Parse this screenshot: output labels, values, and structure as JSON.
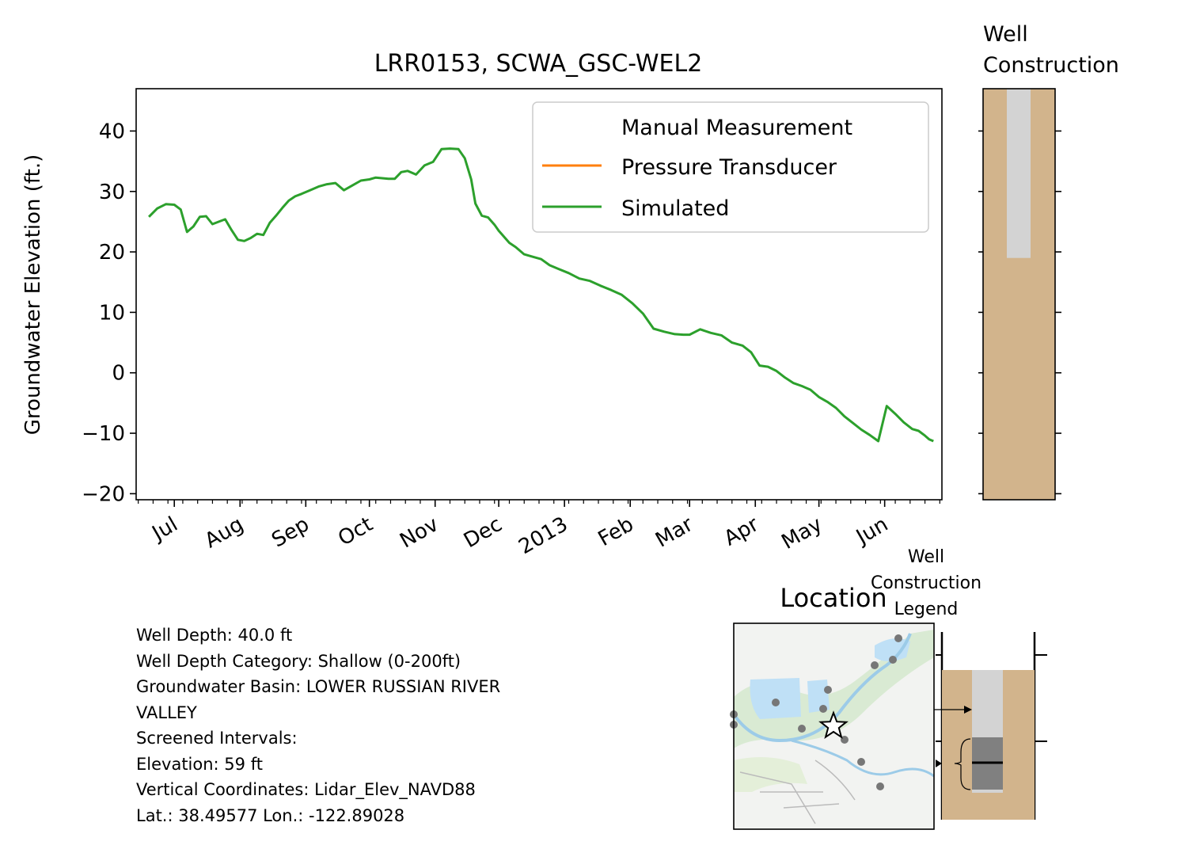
{
  "chart_data": {
    "type": "line",
    "title": "LRR0153, SCWA_GSC-WEL2",
    "ylabel": "Groundwater Elevation (ft.)",
    "xlabel": "",
    "ylim": [
      -21,
      47
    ],
    "xlim": [
      "2012-06-13",
      "2013-06-28"
    ],
    "x_tick_labels": [
      {
        "date": "2012-07-01",
        "label": "Jul"
      },
      {
        "date": "2012-08-01",
        "label": "Aug"
      },
      {
        "date": "2012-09-01",
        "label": "Sep"
      },
      {
        "date": "2012-10-01",
        "label": "Oct"
      },
      {
        "date": "2012-11-01",
        "label": "Nov"
      },
      {
        "date": "2012-12-01",
        "label": "Dec"
      },
      {
        "date": "2013-01-01",
        "label": "2013"
      },
      {
        "date": "2013-02-01",
        "label": "Feb"
      },
      {
        "date": "2013-03-01",
        "label": "Mar"
      },
      {
        "date": "2013-04-01",
        "label": "Apr"
      },
      {
        "date": "2013-05-01",
        "label": "May"
      },
      {
        "date": "2013-06-01",
        "label": "Jun"
      }
    ],
    "y_ticks": [
      -20,
      -10,
      0,
      10,
      20,
      30,
      40
    ],
    "legend": {
      "position": "top-right",
      "entries": [
        {
          "label": "Manual Measurement",
          "color": "none"
        },
        {
          "label": "Pressure Transducer",
          "color": "#ff7f0e"
        },
        {
          "label": "Simulated",
          "color": "#2ca02c"
        }
      ]
    },
    "series": [
      {
        "name": "Manual Measurement",
        "color": "#1f77b4",
        "x": [],
        "y": []
      },
      {
        "name": "Pressure Transducer",
        "color": "#ff7f0e",
        "x": [],
        "y": []
      },
      {
        "name": "Simulated",
        "color": "#2ca02c",
        "x": [
          "2012-06-19",
          "2012-06-23",
          "2012-06-27",
          "2012-07-01",
          "2012-07-04",
          "2012-07-07",
          "2012-07-10",
          "2012-07-13",
          "2012-07-16",
          "2012-07-19",
          "2012-07-22",
          "2012-07-25",
          "2012-07-28",
          "2012-07-31",
          "2012-08-03",
          "2012-08-06",
          "2012-08-09",
          "2012-08-12",
          "2012-08-15",
          "2012-08-18",
          "2012-08-21",
          "2012-08-24",
          "2012-08-27",
          "2012-08-30",
          "2012-09-03",
          "2012-09-07",
          "2012-09-11",
          "2012-09-15",
          "2012-09-19",
          "2012-09-23",
          "2012-09-27",
          "2012-10-01",
          "2012-10-04",
          "2012-10-07",
          "2012-10-10",
          "2012-10-13",
          "2012-10-16",
          "2012-10-19",
          "2012-10-23",
          "2012-10-27",
          "2012-10-31",
          "2012-11-04",
          "2012-11-08",
          "2012-11-12",
          "2012-11-15",
          "2012-11-18",
          "2012-11-20",
          "2012-11-23",
          "2012-11-26",
          "2012-11-29",
          "2012-12-01",
          "2012-12-03",
          "2012-12-06",
          "2012-12-09",
          "2012-12-13",
          "2012-12-17",
          "2012-12-21",
          "2012-12-25",
          "2012-12-29",
          "2013-01-03",
          "2013-01-08",
          "2013-01-13",
          "2013-01-18",
          "2013-01-23",
          "2013-01-28",
          "2013-02-02",
          "2013-02-07",
          "2013-02-12",
          "2013-02-17",
          "2013-02-22",
          "2013-02-26",
          "2013-03-01",
          "2013-03-06",
          "2013-03-11",
          "2013-03-16",
          "2013-03-21",
          "2013-03-26",
          "2013-03-30",
          "2013-04-03",
          "2013-04-07",
          "2013-04-11",
          "2013-04-15",
          "2013-04-19",
          "2013-04-23",
          "2013-04-27",
          "2013-05-01",
          "2013-05-05",
          "2013-05-09",
          "2013-05-13",
          "2013-05-17",
          "2013-05-21",
          "2013-05-25",
          "2013-05-29",
          "2013-06-02",
          "2013-06-06",
          "2013-06-10",
          "2013-06-14",
          "2013-06-17",
          "2013-06-20",
          "2013-06-22",
          "2013-06-24"
        ],
        "y": [
          25.8,
          27.2,
          27.9,
          27.8,
          27.0,
          23.3,
          24.2,
          25.8,
          25.9,
          24.6,
          25.0,
          25.4,
          23.6,
          22.0,
          21.8,
          22.3,
          23.0,
          22.8,
          24.8,
          26.0,
          27.3,
          28.5,
          29.2,
          29.6,
          30.2,
          30.8,
          31.2,
          31.4,
          30.2,
          31.0,
          31.8,
          32.0,
          32.3,
          32.2,
          32.1,
          32.1,
          33.2,
          33.4,
          32.8,
          34.3,
          34.9,
          37.0,
          37.1,
          37.0,
          35.5,
          32.0,
          28.0,
          26.0,
          25.7,
          24.5,
          23.5,
          22.7,
          21.5,
          20.8,
          19.6,
          19.2,
          18.8,
          17.8,
          17.2,
          16.5,
          15.6,
          15.2,
          14.4,
          13.7,
          12.9,
          11.5,
          9.8,
          7.3,
          6.8,
          6.4,
          6.3,
          6.3,
          7.2,
          6.6,
          6.2,
          5.0,
          4.5,
          3.4,
          1.2,
          1.0,
          0.3,
          -0.8,
          -1.7,
          -2.2,
          -2.8,
          -4.0,
          -4.8,
          -5.8,
          -7.2,
          -8.3,
          -9.4,
          -10.3,
          -11.3,
          -5.5,
          -6.8,
          -8.2,
          -9.3,
          -9.6,
          -10.4,
          -11.0,
          -11.3
        ]
      }
    ]
  },
  "well_construction": {
    "title_line1": "Well",
    "title_line2": "Construction",
    "screen_top_elev": 47,
    "screen_bottom_elev": 19,
    "soil_color": "#d2b48c",
    "casing_color": "#d3d3d3"
  },
  "location": {
    "title": "Location"
  },
  "legend_panel": {
    "title_line1": "Well",
    "title_line2": "Construction",
    "title_line3": "Legend"
  },
  "info": {
    "well_depth": "Well Depth: 40.0 ft",
    "depth_category": "Well Depth Category: Shallow (0-200ft)",
    "basin_line1": "Groundwater Basin: LOWER RUSSIAN RIVER",
    "basin_line2": "VALLEY",
    "screened": "Screened Intervals:",
    "elevation": "Elevation: 59 ft",
    "vertical_coords": "Vertical Coordinates: Lidar_Elev_NAVD88",
    "latlon": "Lat.: 38.49577 Lon.: -122.89028"
  }
}
